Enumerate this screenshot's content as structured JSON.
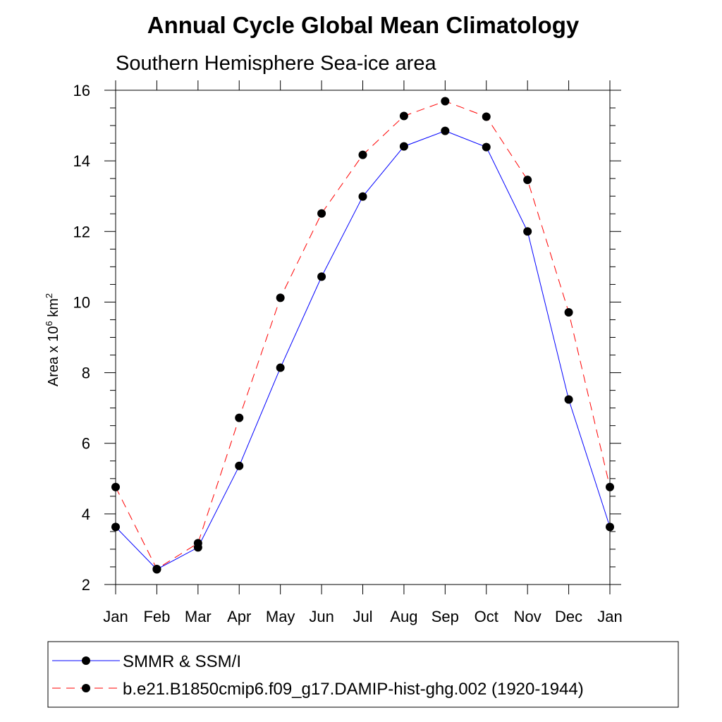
{
  "chart_data": {
    "type": "line",
    "title": "Annual Cycle Global Mean Climatology",
    "subtitle": "Southern Hemisphere Sea-ice area",
    "ylabel_base": "Area x 10",
    "ylabel_exp1": "6",
    "ylabel_unit": " km",
    "ylabel_exp2": "2",
    "xlabel": "",
    "categories": [
      "Jan",
      "Feb",
      "Mar",
      "Apr",
      "May",
      "Jun",
      "Jul",
      "Aug",
      "Sep",
      "Oct",
      "Nov",
      "Dec",
      "Jan"
    ],
    "ylim": [
      2,
      16
    ],
    "yticks": [
      2,
      4,
      6,
      8,
      10,
      12,
      14,
      16
    ],
    "yminor_step": 0.5,
    "grid": false,
    "legend_position": "bottom",
    "series": [
      {
        "name": "SMMR & SSM/I",
        "color": "#0000ff",
        "dash": "solid",
        "values": [
          3.63,
          2.43,
          3.05,
          5.36,
          8.14,
          10.72,
          12.99,
          14.41,
          14.85,
          14.39,
          12.0,
          7.24,
          3.63
        ]
      },
      {
        "name": "b.e21.B1850cmip6.f09_g17.DAMIP-hist-ghg.002 (1920-1944)",
        "color": "#ff0000",
        "dash": "dashed",
        "values": [
          4.76,
          2.44,
          3.17,
          6.72,
          10.12,
          12.51,
          14.17,
          15.27,
          15.69,
          15.25,
          13.46,
          9.71,
          4.76
        ]
      }
    ]
  }
}
